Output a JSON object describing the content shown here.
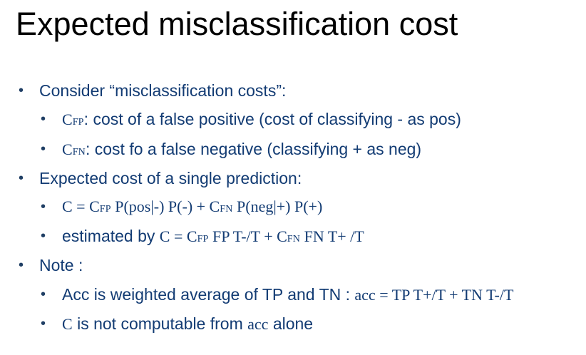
{
  "slide": {
    "title": "Expected misclassification cost",
    "bullets": {
      "b1": {
        "text": "Consider “misclassification costs”:"
      },
      "b1_1": {
        "c": "C",
        "sub": "FP",
        "text": ": cost of a false positive (cost of classifying - as pos)"
      },
      "b1_2": {
        "c": "C",
        "sub": "FN",
        "text": ": cost fo a false negative (classifying + as neg)"
      },
      "b2": {
        "text": "Expected cost of a single prediction:"
      },
      "b2_1": {
        "f1": "C = C",
        "s1": "FP",
        "f2": " P(pos|-) P(-) + C",
        "s2": "FN",
        "f3": " P(neg|+) P(+)"
      },
      "b2_2": {
        "pre": "estimated by ",
        "f1": "C = C",
        "s1": "FP",
        "f2": " FP T-/T + C",
        "s2": "FN",
        "f3": " FN T+ /T"
      },
      "b3": {
        "text": "Note :"
      },
      "b3_1": {
        "pre": "Acc is weighted average of TP and TN : ",
        "f1": "acc = TP T+/T + TN T-/T"
      },
      "b3_2": {
        "c": "C",
        "mid": " is not computable from ",
        "acc": "acc",
        "post": " alone"
      }
    },
    "bullet_symbol": "•"
  },
  "colors": {
    "title": "#000000",
    "body_text": "#123b73",
    "bullet": "#1f3e64"
  }
}
